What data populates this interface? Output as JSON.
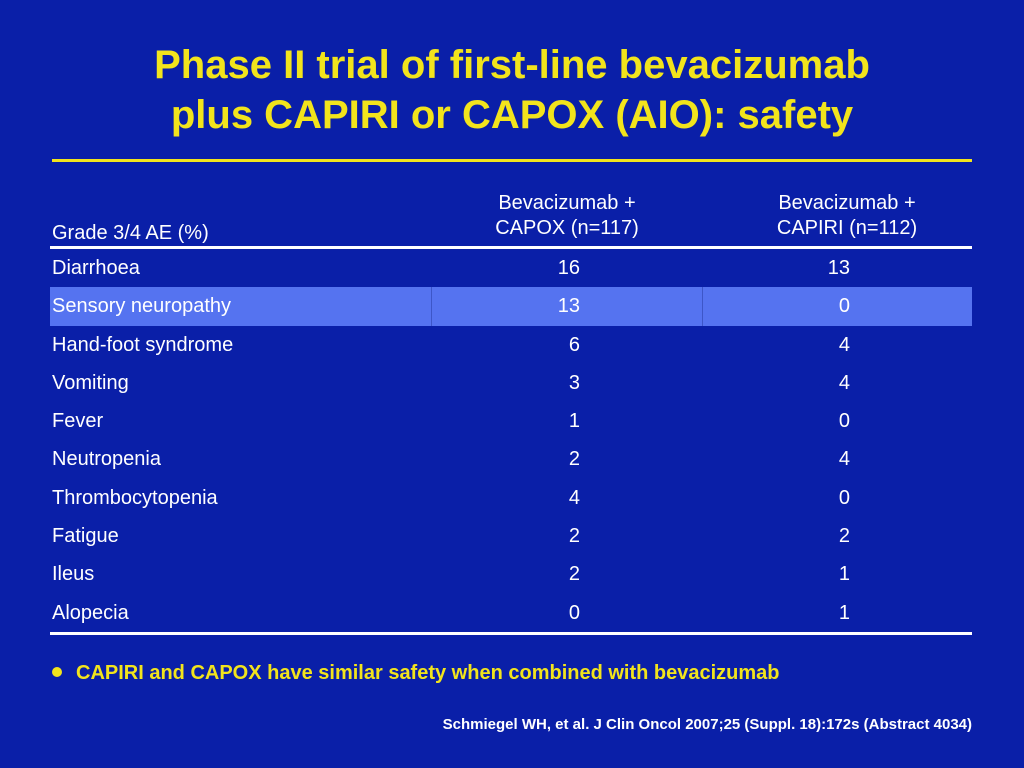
{
  "slide": {
    "title_line1": "Phase II trial of first-line bevacizumab",
    "title_line2": "plus CAPIRI or CAPOX (AIO): safety",
    "colors": {
      "background": "#0a1fa8",
      "title": "#f2e41c",
      "highlight_row": "#5573f0"
    }
  },
  "table": {
    "header": {
      "col0": "Grade 3/4 AE (%)",
      "col1_line1": "Bevacizumab +",
      "col1_line2": "CAPOX (n=117)",
      "col2_line1": "Bevacizumab +",
      "col2_line2": "CAPIRI (n=112)"
    },
    "rows": [
      {
        "label": "Diarrhoea",
        "capox": "16",
        "capiri": "13"
      },
      {
        "label": "Sensory neuropathy",
        "capox": "13",
        "capiri": "0"
      },
      {
        "label": "Hand-foot syndrome",
        "capox": "6",
        "capiri": "4"
      },
      {
        "label": "Vomiting",
        "capox": "3",
        "capiri": "4"
      },
      {
        "label": "Fever",
        "capox": "1",
        "capiri": "0"
      },
      {
        "label": "Neutropenia",
        "capox": "2",
        "capiri": "4"
      },
      {
        "label": "Thrombocytopenia",
        "capox": "4",
        "capiri": "0"
      },
      {
        "label": "Fatigue",
        "capox": "2",
        "capiri": "2"
      },
      {
        "label": "Ileus",
        "capox": "2",
        "capiri": "1"
      },
      {
        "label": "Alopecia",
        "capox": "0",
        "capiri": "1"
      }
    ],
    "highlighted_row_label": "Sensory neuropathy"
  },
  "bullet": {
    "icon": "bullet-dot-icon",
    "text": "CAPIRI and CAPOX have similar safety when combined with bevacizumab"
  },
  "reference": "Schmiegel WH, et al. J Clin Oncol 2007;25 (Suppl. 18):172s (Abstract 4034)"
}
